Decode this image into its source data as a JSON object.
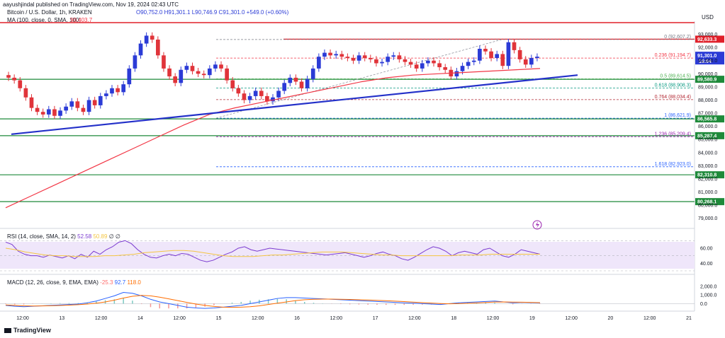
{
  "header": {
    "published_by": "aayushjindal published on TradingView.com, Nov 19, 2024 02:43 UTC",
    "symbol": "Bitcoin / U.S. Dollar, 1h, KRAKEN",
    "ohlc": "O90,752.0 H91,301.1 L90,746.9 C91,301.0 +549.0 (+0.60%)",
    "ma_label": "MA (100, close, 0, SMA, 100)",
    "ma_value": "90,403.7",
    "currency": "USD",
    "brand": "TradingView",
    "lightning_icon": "lightning-icon"
  },
  "colors": {
    "up": "#2b3bd6",
    "down": "#e0343a",
    "ma": "#f23645",
    "trendline": "#2431c9",
    "support_green": "#1e8a3a",
    "resistance_red": "#e0202a",
    "rsi_band": "#e9ddf7",
    "rsi_line": "#7b3bd0",
    "rsi_ma": "#f4c542",
    "macd_line": "#2962ff",
    "signal_line": "#ff6d00"
  },
  "chart_data": [
    {
      "type": "candlestick",
      "title": "Bitcoin / U.S. Dollar, 1h, KRAKEN",
      "ylabel": "USD",
      "ylim": [
        78500,
        94000
      ],
      "x_ticks": [
        "12:00",
        "13",
        "12:00",
        "14",
        "12:00",
        "15",
        "12:00",
        "16",
        "12:00",
        "17",
        "12:00",
        "18",
        "12:00",
        "19",
        "12:00",
        "20",
        "12:00",
        "21"
      ],
      "y_ticks": [
        79000,
        80000,
        81000,
        82000,
        83000,
        84000,
        85000,
        86000,
        87000,
        88000,
        89000,
        90000,
        91000,
        92000,
        93000
      ],
      "y_tick_labels": [
        "79,000.0",
        "80,000.0",
        "81,000.0",
        "82,000.0",
        "83,000.0",
        "84,000.0",
        "85,000.0",
        "86,000.0",
        "87,000.0",
        "88,000.0",
        "89,000.0",
        "90,000.0",
        "91,000.0",
        "92,000.0",
        "93,000.0"
      ],
      "candles_approx_close": [
        89700,
        89500,
        88900,
        88200,
        87400,
        87100,
        86900,
        87300,
        86800,
        87200,
        87500,
        87900,
        87400,
        87100,
        88000,
        87600,
        88300,
        88500,
        88900,
        88600,
        89200,
        90400,
        91400,
        92300,
        92900,
        92600,
        91400,
        90400,
        89800,
        89300,
        90300,
        90600,
        90200,
        90000,
        89900,
        90400,
        90700,
        90400,
        89500,
        88900,
        88500,
        88000,
        88300,
        88700,
        88300,
        87900,
        88200,
        88700,
        89300,
        89700,
        89400,
        88900,
        89600,
        90400,
        91300,
        91600,
        91400,
        91500,
        91300,
        91200,
        91000,
        91400,
        91200,
        91100,
        90800,
        90900,
        91300,
        91400,
        91100,
        90900,
        90700,
        90400,
        90800,
        91000,
        90800,
        90500,
        90300,
        89800,
        90200,
        90600,
        90900,
        91000,
        91900,
        91700,
        91200,
        91500,
        90600,
        92400,
        91800,
        91100,
        90700,
        91200,
        91300
      ],
      "current_price": "91,301.0",
      "current_countdown": "16:04",
      "series": [
        {
          "name": "MA 100",
          "approx_path": [
            79800,
            80700,
            81600,
            82500,
            83400,
            84300,
            85200,
            86100,
            86900,
            87400,
            87800,
            88200,
            88600,
            89000,
            89400,
            89700,
            89900,
            90000,
            90100,
            90200,
            90300,
            90400
          ]
        }
      ],
      "horizontal_levels": [
        {
          "value": 92633.3,
          "label": "92,633.3",
          "color": "red"
        },
        {
          "value": 89580.9,
          "label": "89,580.9",
          "color": "green"
        },
        {
          "value": 86565.8,
          "label": "86,565.8",
          "color": "green"
        },
        {
          "value": 85287.4,
          "label": "85,287.4",
          "color": "green"
        },
        {
          "value": 82310.8,
          "label": "82,310.8",
          "color": "green"
        },
        {
          "value": 80268.1,
          "label": "80,268.1",
          "color": "green"
        }
      ],
      "fib_levels": [
        {
          "label": "0 (92,607.2)",
          "value": 92607.2,
          "color": "#787b86"
        },
        {
          "label": "0.236 (91,194.7)",
          "value": 91194.7,
          "color": "#f23645"
        },
        {
          "label": "0.5 (89,614.5)",
          "value": 89614.5,
          "color": "#4caf50"
        },
        {
          "label": "0.618 (88,908.3)",
          "value": 88908.3,
          "color": "#089981"
        },
        {
          "label": "0.764 (88,034.4)",
          "value": 88034.4,
          "color": "#b22833"
        },
        {
          "label": "1 (86,621.9)",
          "value": 86621.9,
          "color": "#2962ff"
        },
        {
          "label": "1.236 (85,209.4)",
          "value": 85209.4,
          "color": "#9c27b0"
        },
        {
          "label": "1.618 (82,923.0)",
          "value": 82923.0,
          "color": "#2962ff"
        }
      ],
      "trendline": {
        "from": 85400,
        "to": 89900
      }
    },
    {
      "type": "line",
      "title": "RSI (14, close, SMA, 14, 2)",
      "label": "RSI (14, close, SMA, 14, 2)",
      "rsi_value": "52.58",
      "rsi_ma_value": "50.89",
      "extra": "∅ ∅",
      "ylim": [
        30,
        75
      ],
      "y_tick_labels": [
        "60.00",
        "40.00"
      ],
      "band": [
        30,
        70
      ],
      "rsi_values": [
        68,
        65,
        56,
        52,
        50,
        50,
        48,
        51,
        49,
        47,
        50,
        46,
        52,
        48,
        56,
        52,
        58,
        62,
        68,
        70,
        66,
        58,
        52,
        48,
        47,
        50,
        52,
        50,
        53,
        52,
        48,
        44,
        42,
        44,
        48,
        52,
        55,
        60,
        62,
        58,
        56,
        58,
        60,
        59,
        58,
        57,
        56,
        55,
        54,
        53,
        52,
        51,
        52,
        53,
        54,
        52,
        50,
        48,
        50,
        53,
        55,
        52,
        50,
        46,
        44,
        48,
        53,
        58,
        62,
        60,
        56,
        50,
        54,
        56,
        54,
        52,
        58,
        60,
        55,
        50,
        48,
        52,
        58,
        56,
        54,
        52
      ],
      "rsi_ma_values": [
        60,
        58,
        55,
        53,
        51,
        50,
        50,
        49,
        49,
        49,
        50,
        50,
        51,
        52,
        54,
        55,
        56,
        57,
        57,
        56,
        54,
        52,
        50,
        49,
        49,
        49,
        50,
        51,
        51,
        52,
        53,
        54,
        55,
        55,
        55,
        54,
        53,
        52,
        51,
        51,
        50,
        50,
        50,
        50,
        50,
        50,
        51,
        51,
        51,
        52,
        52,
        52,
        52,
        52,
        52
      ]
    },
    {
      "type": "line",
      "title": "MACD (12, 26, close, 9, EMA, EMA)",
      "label": "MACD (12, 26, close, 9, EMA, EMA)",
      "hist_value": "-25.3",
      "macd_value": "92.7",
      "signal_value": "118.0",
      "y_tick_labels": [
        "2,000.0",
        "1,000.0",
        "0.0"
      ],
      "ylim": [
        -700,
        2400
      ],
      "macd_values": [
        -200,
        -300,
        -350,
        -300,
        -250,
        -200,
        -150,
        -100,
        -50,
        100,
        300,
        600,
        900,
        1300,
        1200,
        900,
        500,
        200,
        0,
        -200,
        -400,
        -500,
        -550,
        -500,
        -400,
        -300,
        -200,
        0,
        200,
        400,
        600,
        700,
        700,
        650,
        600,
        550,
        500,
        450,
        400,
        350,
        300,
        250,
        200,
        150,
        100,
        50,
        0,
        -50,
        -100,
        0,
        100,
        150,
        200,
        250,
        300,
        200,
        100,
        150,
        120,
        90
      ],
      "signal_values": [
        -150,
        -200,
        -250,
        -270,
        -260,
        -240,
        -210,
        -170,
        -120,
        -50,
        50,
        200,
        400,
        650,
        850,
        950,
        900,
        750,
        550,
        350,
        150,
        -50,
        -200,
        -320,
        -400,
        -420,
        -400,
        -350,
        -250,
        -100,
        50,
        200,
        350,
        450,
        500,
        520,
        520,
        500,
        480,
        450,
        420,
        380,
        340,
        290,
        240,
        180,
        120,
        60,
        10,
        -20,
        0,
        40,
        90,
        140,
        190,
        200,
        180,
        170,
        150,
        120
      ]
    }
  ]
}
